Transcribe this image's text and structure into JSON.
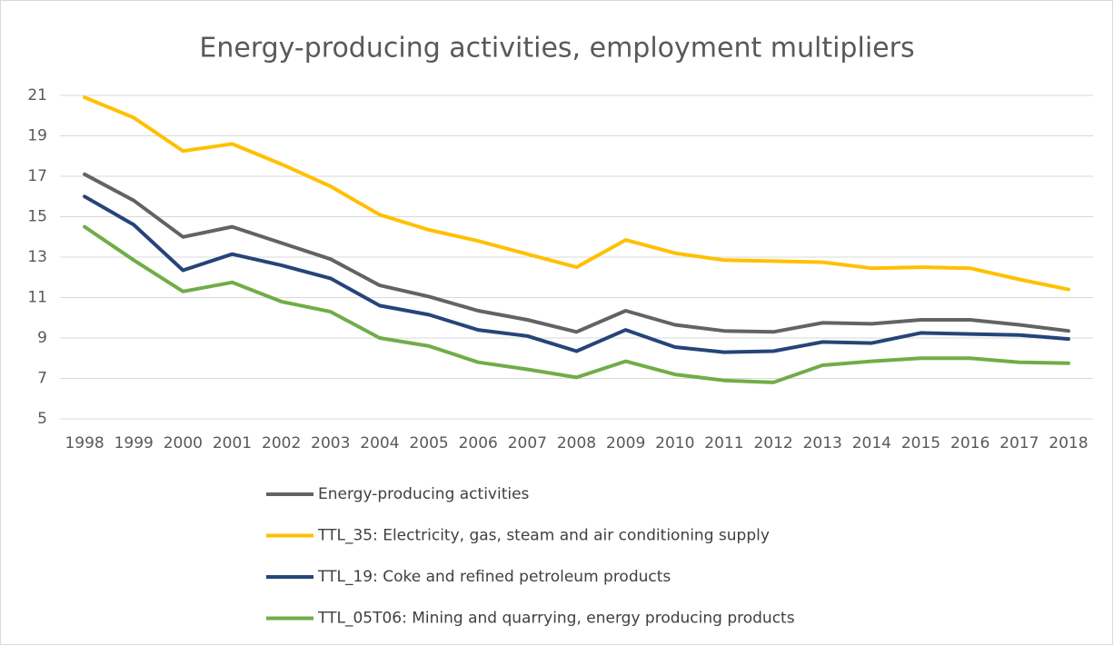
{
  "chart_data": {
    "type": "line",
    "title": "Energy-producing activities, employment multipliers",
    "categories": [
      "1998",
      "1999",
      "2000",
      "2001",
      "2002",
      "2003",
      "2004",
      "2005",
      "2006",
      "2007",
      "2008",
      "2009",
      "2010",
      "2011",
      "2012",
      "2013",
      "2014",
      "2015",
      "2016",
      "2017",
      "2018"
    ],
    "series": [
      {
        "name": "Energy-producing activities",
        "color": "#636363",
        "values": [
          17.1,
          15.8,
          14.0,
          14.5,
          13.7,
          12.9,
          11.6,
          11.05,
          10.35,
          9.9,
          9.3,
          10.35,
          9.65,
          9.35,
          9.3,
          9.75,
          9.7,
          9.9,
          9.9,
          9.65,
          9.35
        ]
      },
      {
        "name": "TTL_35: Electricity, gas, steam and air conditioning supply",
        "color": "#ffc000",
        "values": [
          20.9,
          19.9,
          18.25,
          18.6,
          17.6,
          16.5,
          15.1,
          14.35,
          13.8,
          13.15,
          12.5,
          13.85,
          13.2,
          12.85,
          12.8,
          12.75,
          12.45,
          12.5,
          12.45,
          11.9,
          11.4
        ]
      },
      {
        "name": "TTL_19: Coke and refined petroleum products",
        "color": "#264478",
        "values": [
          16.0,
          14.6,
          12.35,
          13.15,
          12.6,
          11.95,
          10.6,
          10.15,
          9.4,
          9.1,
          8.35,
          9.4,
          8.55,
          8.3,
          8.35,
          8.8,
          8.75,
          9.25,
          9.2,
          9.15,
          8.95
        ]
      },
      {
        "name": "TTL_05T06: Mining and quarrying, energy producing products",
        "color": "#70ad47",
        "values": [
          14.5,
          12.85,
          11.3,
          11.75,
          10.8,
          10.3,
          9.0,
          8.6,
          7.8,
          7.45,
          7.05,
          7.85,
          7.2,
          6.9,
          6.8,
          7.65,
          7.85,
          8.0,
          8.0,
          7.8,
          7.75
        ]
      }
    ],
    "ylim": [
      5,
      21
    ],
    "yticks": [
      5,
      7,
      9,
      11,
      13,
      15,
      17,
      19,
      21
    ],
    "grid": true,
    "legend": "bottom"
  }
}
